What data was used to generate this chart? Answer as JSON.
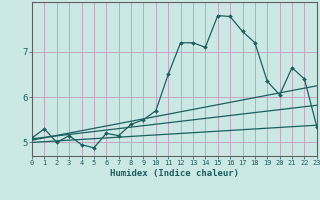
{
  "xlabel": "Humidex (Indice chaleur)",
  "bg_color": "#cce8e4",
  "grid_color": "#c0a8c0",
  "line_color": "#1a6060",
  "xlim": [
    0,
    23
  ],
  "ylim": [
    4.7,
    8.1
  ],
  "yticks": [
    5,
    6,
    7
  ],
  "xticks": [
    0,
    1,
    2,
    3,
    4,
    5,
    6,
    7,
    8,
    9,
    10,
    11,
    12,
    13,
    14,
    15,
    16,
    17,
    18,
    19,
    20,
    21,
    22,
    23
  ],
  "main_line_x": [
    0,
    1,
    2,
    3,
    4,
    5,
    6,
    7,
    8,
    9,
    10,
    11,
    12,
    13,
    14,
    15,
    16,
    17,
    18,
    19,
    20,
    21,
    22,
    23
  ],
  "main_line_y": [
    5.1,
    5.3,
    5.0,
    5.15,
    4.95,
    4.88,
    5.2,
    5.15,
    5.4,
    5.5,
    5.7,
    6.5,
    7.2,
    7.2,
    7.1,
    7.8,
    7.78,
    7.45,
    7.2,
    6.35,
    6.05,
    6.65,
    6.4,
    5.35
  ],
  "reg_lines": [
    {
      "x": [
        0,
        23
      ],
      "y": [
        5.05,
        6.25
      ]
    },
    {
      "x": [
        0,
        23
      ],
      "y": [
        5.0,
        5.38
      ]
    },
    {
      "x": [
        0,
        23
      ],
      "y": [
        5.08,
        5.82
      ]
    }
  ]
}
